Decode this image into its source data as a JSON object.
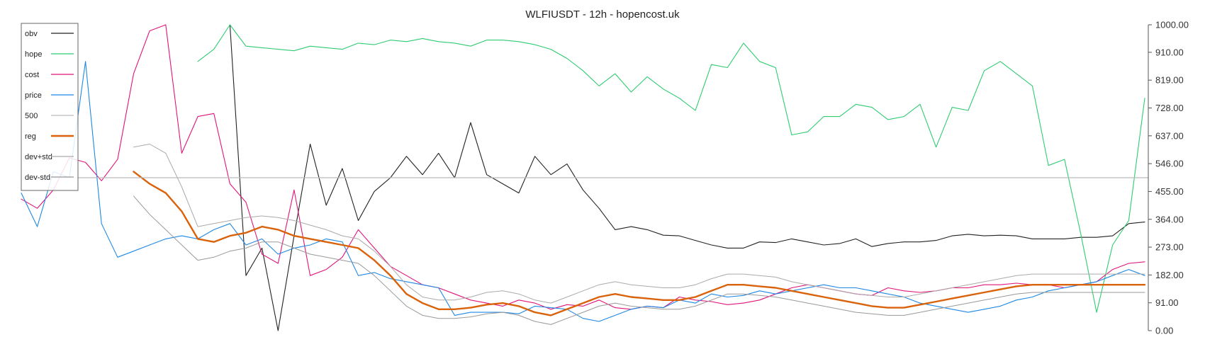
{
  "chart_data": {
    "type": "line",
    "title": "WLFIUSDT - 12h - hopencost.uk",
    "xlabel": "",
    "ylabel": "",
    "ylim": [
      0,
      1000
    ],
    "y_ticks": [
      "1000.00",
      "910.00",
      "819.00",
      "728.00",
      "637.00",
      "546.00",
      "455.00",
      "364.00",
      "273.00",
      "182.00",
      "91.00",
      "0.00"
    ],
    "y_tick_values": [
      1000,
      910,
      819,
      728,
      637,
      546,
      455,
      364,
      273,
      182,
      91,
      0
    ],
    "y_axis_side": "right",
    "grid": false,
    "legend_position": "top-left",
    "reference_line": {
      "label": "500",
      "value": 500
    },
    "colors": {
      "obv": "#222222",
      "hope": "#2ecc71",
      "cost": "#e0157a",
      "price": "#1e88e5",
      "500": "#bbbbbb",
      "reg": "#d9620b",
      "dev+std": "#aaaaaa",
      "dev-std": "#999999"
    },
    "x": [
      0,
      4,
      8,
      12,
      16,
      20,
      24,
      28,
      32,
      36,
      40,
      44,
      48,
      52,
      56,
      60,
      64,
      68,
      72,
      76,
      80,
      84,
      88,
      92,
      96,
      100,
      104,
      108,
      112,
      116,
      120,
      124,
      128,
      132,
      136,
      140,
      144,
      148,
      152,
      156,
      160,
      164,
      168,
      172,
      176,
      180,
      184,
      188,
      192,
      196,
      200,
      204,
      208,
      212,
      216,
      220,
      224,
      228,
      232,
      236,
      240,
      244,
      248,
      252,
      256,
      260,
      264,
      268,
      272,
      276,
      280
    ],
    "series": [
      {
        "name": "obv",
        "values": [
          null,
          null,
          null,
          null,
          null,
          null,
          null,
          null,
          null,
          null,
          null,
          null,
          null,
          1000,
          180,
          270,
          0,
          310,
          610,
          410,
          530,
          360,
          455,
          500,
          570,
          510,
          580,
          500,
          680,
          510,
          480,
          450,
          570,
          510,
          545,
          460,
          400,
          330,
          340,
          330,
          312,
          310,
          295,
          280,
          270,
          270,
          290,
          288,
          300,
          290,
          280,
          285,
          300,
          275,
          285,
          290,
          290,
          295,
          310,
          315,
          310,
          312,
          310,
          300,
          300,
          300,
          305,
          305,
          310,
          350,
          355
        ]
      },
      {
        "name": "hope",
        "values": [
          null,
          null,
          null,
          null,
          null,
          null,
          null,
          null,
          null,
          null,
          null,
          880,
          920,
          1000,
          930,
          925,
          920,
          915,
          930,
          925,
          920,
          940,
          935,
          950,
          945,
          955,
          945,
          940,
          930,
          950,
          950,
          945,
          935,
          920,
          890,
          850,
          800,
          840,
          780,
          830,
          790,
          760,
          720,
          870,
          860,
          940,
          880,
          860,
          640,
          650,
          700,
          700,
          740,
          730,
          690,
          700,
          740,
          600,
          730,
          720,
          850,
          880,
          840,
          800,
          540,
          560,
          320,
          60,
          280,
          360,
          760
        ]
      },
      {
        "name": "cost",
        "values": [
          430,
          400,
          460,
          565,
          550,
          490,
          560,
          840,
          980,
          1000,
          580,
          700,
          710,
          480,
          420,
          250,
          220,
          460,
          180,
          200,
          240,
          330,
          270,
          210,
          180,
          150,
          140,
          120,
          100,
          90,
          80,
          100,
          90,
          70,
          85,
          80,
          100,
          75,
          70,
          80,
          75,
          110,
          100,
          95,
          85,
          90,
          100,
          120,
          140,
          150,
          140,
          130,
          120,
          115,
          140,
          130,
          125,
          130,
          140,
          140,
          150,
          150,
          155,
          150,
          150,
          140,
          150,
          160,
          200,
          220,
          225
        ]
      },
      {
        "name": "price",
        "values": [
          450,
          340,
          520,
          500,
          880,
          350,
          240,
          260,
          280,
          300,
          310,
          300,
          330,
          350,
          280,
          300,
          250,
          270,
          280,
          300,
          290,
          180,
          190,
          170,
          160,
          150,
          140,
          50,
          60,
          60,
          60,
          55,
          80,
          75,
          70,
          40,
          30,
          50,
          70,
          80,
          75,
          100,
          90,
          120,
          110,
          115,
          130,
          120,
          130,
          140,
          150,
          140,
          140,
          130,
          120,
          110,
          90,
          80,
          70,
          60,
          70,
          80,
          100,
          110,
          130,
          140,
          150,
          160,
          180,
          200,
          180
        ]
      },
      {
        "name": "500",
        "values": [
          500,
          500,
          500,
          500,
          500,
          500,
          500,
          500,
          500,
          500,
          500,
          500,
          500,
          500,
          500,
          500,
          500,
          500,
          500,
          500,
          500,
          500,
          500,
          500,
          500,
          500,
          500,
          500,
          500,
          500,
          500,
          500,
          500,
          500,
          500,
          500,
          500,
          500,
          500,
          500,
          500,
          500,
          500,
          500,
          500,
          500,
          500,
          500,
          500,
          500,
          500,
          500,
          500,
          500,
          500,
          500,
          500,
          500,
          500,
          500,
          500,
          500,
          500,
          500,
          500,
          500,
          500,
          500,
          500,
          500,
          500
        ]
      },
      {
        "name": "reg",
        "values": [
          null,
          null,
          null,
          null,
          null,
          null,
          null,
          520,
          480,
          450,
          390,
          300,
          290,
          310,
          320,
          340,
          330,
          310,
          300,
          290,
          280,
          270,
          230,
          180,
          120,
          90,
          70,
          70,
          75,
          85,
          90,
          80,
          60,
          50,
          70,
          90,
          110,
          120,
          110,
          105,
          100,
          100,
          110,
          130,
          150,
          150,
          145,
          140,
          130,
          120,
          110,
          100,
          90,
          80,
          75,
          75,
          85,
          95,
          105,
          115,
          125,
          135,
          145,
          150,
          150,
          150,
          150,
          150,
          150,
          150,
          150
        ]
      },
      {
        "name": "dev+std",
        "values": [
          null,
          null,
          null,
          null,
          null,
          null,
          null,
          600,
          610,
          580,
          470,
          340,
          350,
          360,
          370,
          375,
          370,
          360,
          345,
          330,
          310,
          300,
          260,
          210,
          150,
          110,
          100,
          100,
          110,
          125,
          130,
          120,
          100,
          90,
          110,
          130,
          150,
          160,
          150,
          145,
          140,
          140,
          150,
          170,
          185,
          185,
          180,
          175,
          160,
          150,
          140,
          130,
          120,
          115,
          110,
          110,
          120,
          130,
          140,
          150,
          160,
          170,
          180,
          185,
          185,
          185,
          185,
          185,
          185,
          185,
          185
        ]
      },
      {
        "name": "dev-std",
        "values": [
          null,
          null,
          null,
          null,
          null,
          null,
          null,
          440,
          380,
          330,
          280,
          230,
          240,
          260,
          270,
          290,
          290,
          270,
          250,
          240,
          230,
          220,
          180,
          130,
          80,
          50,
          40,
          40,
          45,
          55,
          60,
          50,
          30,
          20,
          40,
          60,
          80,
          90,
          80,
          75,
          70,
          70,
          80,
          100,
          120,
          120,
          115,
          110,
          100,
          90,
          80,
          70,
          60,
          55,
          50,
          50,
          60,
          70,
          80,
          90,
          100,
          110,
          120,
          125,
          125,
          125,
          125,
          125,
          125,
          125,
          125
        ]
      }
    ],
    "legend": [
      {
        "name": "obv"
      },
      {
        "name": "hope"
      },
      {
        "name": "cost"
      },
      {
        "name": "price"
      },
      {
        "name": "500"
      },
      {
        "name": "reg"
      },
      {
        "name": "dev+std"
      },
      {
        "name": "dev-std"
      }
    ]
  }
}
